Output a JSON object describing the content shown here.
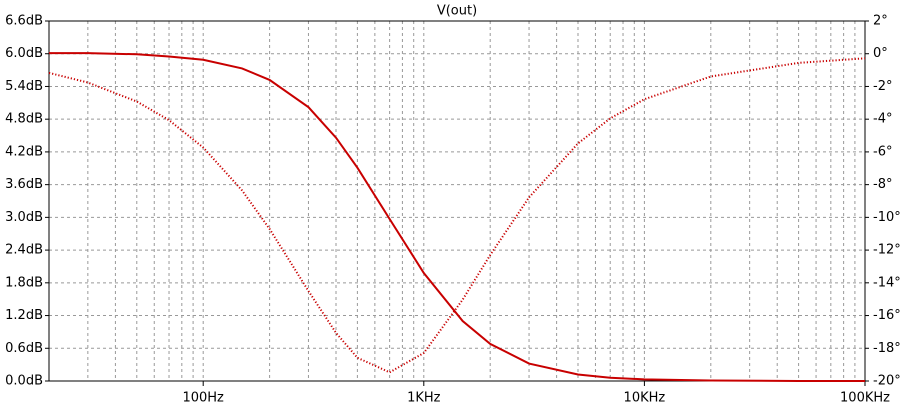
{
  "chart_data": {
    "type": "line",
    "title": "V(out)",
    "title_color": "#c80000",
    "x_scale": "log",
    "xlim": [
      20,
      100000
    ],
    "xticks": [
      {
        "value": 100,
        "label": "100Hz"
      },
      {
        "value": 1000,
        "label": "1KHz"
      },
      {
        "value": 10000,
        "label": "10KHz"
      },
      {
        "value": 100000,
        "label": "100KHz"
      }
    ],
    "xminorticks": [
      30,
      40,
      50,
      60,
      70,
      80,
      90,
      200,
      300,
      400,
      500,
      600,
      700,
      800,
      900,
      2000,
      3000,
      4000,
      5000,
      6000,
      7000,
      8000,
      9000,
      20000,
      30000,
      40000,
      50000,
      60000,
      70000,
      80000,
      90000
    ],
    "ylim": [
      0,
      6.6
    ],
    "yticks": [
      {
        "value": 0,
        "label": "0.0dB"
      },
      {
        "value": 0.6,
        "label": "0.6dB"
      },
      {
        "value": 1.2,
        "label": "1.2dB"
      },
      {
        "value": 1.8,
        "label": "1.8dB"
      },
      {
        "value": 2.4,
        "label": "2.4dB"
      },
      {
        "value": 3.0,
        "label": "3.0dB"
      },
      {
        "value": 3.6,
        "label": "3.6dB"
      },
      {
        "value": 4.2,
        "label": "4.2dB"
      },
      {
        "value": 4.8,
        "label": "4.8dB"
      },
      {
        "value": 5.4,
        "label": "5.4dB"
      },
      {
        "value": 6.0,
        "label": "6.0dB"
      },
      {
        "value": 6.6,
        "label": "6.6dB"
      }
    ],
    "y2lim": [
      -20,
      2
    ],
    "y2ticks": [
      {
        "value": -20,
        "label": "-20°"
      },
      {
        "value": -18,
        "label": "-18°"
      },
      {
        "value": -16,
        "label": "-16°"
      },
      {
        "value": -14,
        "label": "-14°"
      },
      {
        "value": -12,
        "label": "-12°"
      },
      {
        "value": -10,
        "label": "-10°"
      },
      {
        "value": -8,
        "label": "-8°"
      },
      {
        "value": -6,
        "label": "-6°"
      },
      {
        "value": -4,
        "label": "-4°"
      },
      {
        "value": -2,
        "label": "-2°"
      },
      {
        "value": 0,
        "label": "0°"
      },
      {
        "value": 2,
        "label": "2°"
      }
    ],
    "grid": true,
    "x": [
      20,
      30,
      50,
      70,
      100,
      150,
      200,
      300,
      400,
      500,
      700,
      1000,
      1500,
      2000,
      3000,
      5000,
      7000,
      10000,
      20000,
      50000,
      100000
    ],
    "series": [
      {
        "color": "#c80000",
        "style": "solid",
        "axis": "y",
        "values": [
          6.01,
          6.01,
          5.99,
          5.95,
          5.89,
          5.73,
          5.52,
          5.02,
          4.46,
          3.91,
          2.97,
          1.98,
          1.1,
          0.68,
          0.32,
          0.12,
          0.06,
          0.03,
          0.01,
          0.0,
          0.0
        ]
      },
      {
        "color": "#c80000",
        "style": "dotted",
        "axis": "y2",
        "values": [
          -1.17,
          -1.76,
          -2.92,
          -4.06,
          -5.73,
          -8.35,
          -10.71,
          -14.5,
          -17.06,
          -18.58,
          -19.47,
          -18.29,
          -15.03,
          -12.3,
          -8.78,
          -5.48,
          -3.95,
          -2.78,
          -1.39,
          -0.56,
          -0.28
        ]
      }
    ]
  }
}
